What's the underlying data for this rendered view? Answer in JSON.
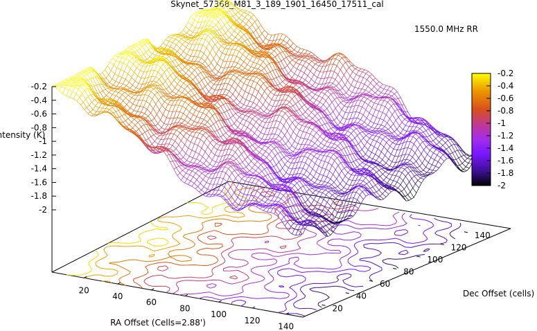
{
  "chart_data": {
    "type": "surface",
    "title": "Skynet_57368_M81_3_189_1901_16450_17511_cal",
    "xlabel": "RA Offset (Cells=2.88')",
    "ylabel": "Dec Offset (cells)",
    "zlabel": "Intensity (K)",
    "legend": {
      "label": "1550.0 MHz RR",
      "placement": "top-right"
    },
    "x_ticks": [
      "20",
      "40",
      "60",
      "80",
      "100",
      "120",
      "140"
    ],
    "y_ticks": [
      "20",
      "40",
      "60",
      "80",
      "100",
      "120",
      "140"
    ],
    "z_ticks": [
      "-0.2",
      "-0.4",
      "-0.6",
      "-0.8",
      "-1",
      "-1.2",
      "-1.4",
      "-1.6",
      "-1.8",
      "-2"
    ],
    "colorbar_ticks": [
      "-0.2",
      "-0.4",
      "-0.6",
      "-0.8",
      "-1",
      "-1.2",
      "-1.4",
      "-1.6",
      "-1.8",
      "-2"
    ],
    "xlim": [
      1,
      150
    ],
    "ylim": [
      1,
      150
    ],
    "zlim": [
      -2,
      -0.2
    ],
    "colormap": [
      "#000000",
      "#3b0f8c",
      "#7a16ff",
      "#a42ee8",
      "#c23a8c",
      "#d8501a",
      "#ec9400",
      "#ffff00"
    ],
    "grid": false,
    "surface_trend": "intensity highest (about -0.2 K) at low RA offset, decreasing to about -1.8 K at high RA offset, with wavy ridges along Dec",
    "contours": "projected contour lines on the base plane, colored by intensity"
  }
}
